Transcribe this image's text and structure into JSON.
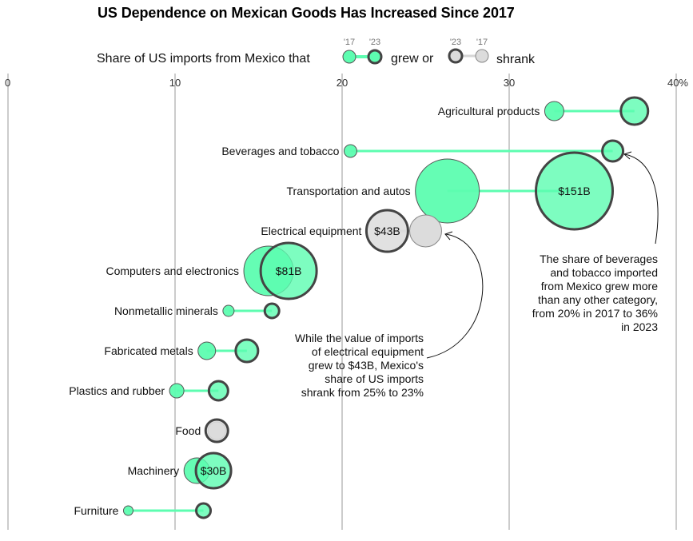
{
  "title": "US Dependence on Mexican Goods Has Increased Since 2017",
  "legend": {
    "intro": "Share of US imports from Mexico that",
    "grew_label": "grew or",
    "shrank_label": "shrank",
    "year_2017": "'17",
    "year_2023": "'23"
  },
  "colors": {
    "grew_fill": "#5dfdb0",
    "shrank_fill": "#dcdcdc",
    "outline_2023": "#444444",
    "outline_2017": "#888888",
    "connector_grew": "#5dfdb0",
    "connector_shrank": "#d6d6d6",
    "gridline": "#9a9a9a"
  },
  "chart_data": {
    "type": "dumbbell-bubble",
    "title": "US Dependence on Mexican Goods Has Increased Since 2017",
    "xlabel": "",
    "ylabel": "",
    "xlim": [
      0,
      40
    ],
    "x_ticks": [
      0,
      10,
      20,
      30,
      40
    ],
    "x_tick_labels": [
      "0",
      "10",
      "20",
      "30",
      "40%"
    ],
    "grid": true,
    "series_names": [
      "2017",
      "2023"
    ],
    "categories": [
      {
        "name": "Agricultural products",
        "share_2017": 32.7,
        "share_2023": 37.5,
        "trend": "grew",
        "bubble_size_2017": 12,
        "bubble_size_2023": 17,
        "value_label_2023": ""
      },
      {
        "name": "Beverages and tobacco",
        "share_2017": 20.5,
        "share_2023": 36.2,
        "trend": "grew",
        "bubble_size_2017": 8,
        "bubble_size_2023": 13,
        "value_label_2023": ""
      },
      {
        "name": "Transportation and autos",
        "share_2017": 26.3,
        "share_2023": 33.9,
        "trend": "grew",
        "bubble_size_2017": 40,
        "bubble_size_2023": 48,
        "value_label_2023": "$151B"
      },
      {
        "name": "Electrical equipment",
        "share_2017": 25.0,
        "share_2023": 22.7,
        "trend": "shrank",
        "bubble_size_2017": 20,
        "bubble_size_2023": 26,
        "value_label_2023": "$43B"
      },
      {
        "name": "Computers and electronics",
        "share_2017": 15.6,
        "share_2023": 16.8,
        "trend": "grew",
        "bubble_size_2017": 31,
        "bubble_size_2023": 35,
        "value_label_2023": "$81B"
      },
      {
        "name": "Nonmetallic minerals",
        "share_2017": 13.2,
        "share_2023": 15.8,
        "trend": "grew",
        "bubble_size_2017": 7,
        "bubble_size_2023": 9,
        "value_label_2023": ""
      },
      {
        "name": "Fabricated metals",
        "share_2017": 11.9,
        "share_2023": 14.3,
        "trend": "grew",
        "bubble_size_2017": 11,
        "bubble_size_2023": 14,
        "value_label_2023": ""
      },
      {
        "name": "Plastics and rubber",
        "share_2017": 10.1,
        "share_2023": 12.6,
        "trend": "grew",
        "bubble_size_2017": 9,
        "bubble_size_2023": 12,
        "value_label_2023": ""
      },
      {
        "name": "Food",
        "share_2017": 12.5,
        "share_2023": 12.5,
        "trend": "shrank",
        "bubble_size_2017": 11,
        "bubble_size_2023": 14,
        "value_label_2023": ""
      },
      {
        "name": "Machinery",
        "share_2017": 11.3,
        "share_2023": 12.3,
        "trend": "grew",
        "bubble_size_2017": 16,
        "bubble_size_2023": 22,
        "value_label_2023": "$30B"
      },
      {
        "name": "Furniture",
        "share_2017": 7.2,
        "share_2023": 11.7,
        "trend": "grew",
        "bubble_size_2017": 6,
        "bubble_size_2023": 9,
        "value_label_2023": ""
      }
    ],
    "annotations": [
      {
        "text_lines": [
          "The share of beverages",
          "and tobacco imported",
          "from Mexico grew more",
          "than any other category,",
          "from 20% in 2017 to 36%",
          "in 2023"
        ],
        "target": "Beverages and tobacco"
      },
      {
        "text_lines": [
          "While the value of imports",
          "of electrical equipment",
          "grew to $43B, Mexico's",
          "share of US imports",
          "shrank from 25% to 23%"
        ],
        "target": "Electrical equipment"
      }
    ]
  }
}
